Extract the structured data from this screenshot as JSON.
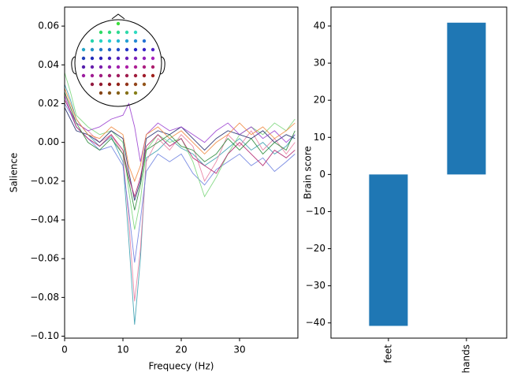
{
  "chart_data": [
    {
      "type": "line",
      "xlabel": "Frequecy (Hz)",
      "ylabel": "Salience",
      "x": [
        0,
        1,
        2,
        4,
        6,
        8,
        10,
        11,
        12,
        13,
        14,
        16,
        18,
        20,
        22,
        24,
        26,
        28,
        30,
        32,
        34,
        36,
        38,
        39.5
      ],
      "series": [
        {
          "color": "#3a9fb0",
          "values": [
            0.03,
            0.022,
            0.012,
            0.004,
            -0.002,
            0.003,
            -0.01,
            -0.05,
            -0.094,
            -0.06,
            -0.008,
            -0.004,
            0.002,
            -0.003,
            -0.006,
            -0.012,
            -0.008,
            -0.003,
            0.002,
            -0.004,
            0.0,
            -0.006,
            -0.002,
            0.004
          ]
        },
        {
          "color": "#e87ca0",
          "values": [
            0.025,
            0.018,
            0.01,
            0.006,
            0.0,
            0.004,
            -0.006,
            -0.04,
            -0.082,
            -0.055,
            -0.01,
            0.002,
            -0.004,
            0.004,
            -0.002,
            -0.02,
            -0.01,
            0.004,
            -0.002,
            0.006,
            -0.004,
            0.002,
            -0.006,
            0.0
          ]
        },
        {
          "color": "#6b7fe0",
          "values": [
            0.02,
            0.015,
            0.008,
            0.002,
            -0.004,
            -0.002,
            -0.012,
            -0.035,
            -0.062,
            -0.04,
            -0.015,
            -0.006,
            -0.01,
            -0.006,
            -0.016,
            -0.022,
            -0.014,
            -0.01,
            -0.006,
            -0.012,
            -0.008,
            -0.015,
            -0.01,
            -0.006
          ]
        },
        {
          "color": "#7ad67a",
          "values": [
            0.036,
            0.026,
            0.014,
            0.008,
            0.004,
            0.006,
            0.0,
            -0.025,
            -0.045,
            -0.03,
            -0.004,
            0.004,
            0.0,
            0.002,
            -0.01,
            -0.028,
            -0.018,
            -0.006,
            0.004,
            0.008,
            0.004,
            0.01,
            0.006,
            0.012
          ]
        },
        {
          "color": "#1f2a6b",
          "values": [
            0.018,
            0.012,
            0.006,
            0.004,
            0.0,
            0.006,
            0.002,
            -0.015,
            -0.03,
            -0.02,
            0.002,
            0.006,
            0.004,
            0.008,
            0.002,
            -0.004,
            0.002,
            0.006,
            0.004,
            0.002,
            0.006,
            0.0,
            0.004,
            0.002
          ]
        },
        {
          "color": "#9a3fd0",
          "values": [
            0.024,
            0.016,
            0.01,
            0.006,
            0.008,
            0.012,
            0.014,
            0.02,
            0.008,
            -0.01,
            0.004,
            0.01,
            0.006,
            0.008,
            0.004,
            0.0,
            0.006,
            0.01,
            0.004,
            0.008,
            0.002,
            0.006,
            0.0,
            0.004
          ]
        },
        {
          "color": "#b0206a",
          "values": [
            0.022,
            0.016,
            0.008,
            0.002,
            -0.002,
            0.004,
            -0.004,
            -0.018,
            -0.028,
            -0.018,
            -0.002,
            0.004,
            -0.002,
            0.002,
            -0.008,
            -0.012,
            -0.016,
            -0.006,
            0.0,
            -0.006,
            -0.012,
            -0.004,
            -0.008,
            -0.004
          ]
        },
        {
          "color": "#f08a40",
          "values": [
            0.028,
            0.02,
            0.012,
            0.004,
            0.002,
            0.008,
            0.004,
            -0.012,
            -0.02,
            -0.012,
            0.004,
            0.008,
            0.002,
            0.006,
            0.0,
            -0.006,
            0.0,
            0.004,
            0.01,
            0.004,
            0.008,
            0.002,
            0.006,
            0.01
          ]
        },
        {
          "color": "#2a8a3a",
          "values": [
            0.026,
            0.018,
            0.01,
            0.0,
            -0.004,
            0.002,
            -0.006,
            -0.02,
            -0.035,
            -0.022,
            -0.004,
            0.0,
            0.004,
            -0.002,
            -0.004,
            -0.01,
            -0.006,
            0.002,
            -0.004,
            0.002,
            -0.006,
            0.0,
            -0.004,
            0.006
          ]
        }
      ],
      "xlim": [
        0,
        40
      ],
      "ylim": [
        -0.101,
        0.0698
      ],
      "xticks": [
        0,
        10,
        20,
        30
      ],
      "yticks": [
        {
          "value": -0.1,
          "label": "−0.10"
        },
        {
          "value": -0.08,
          "label": "−0.08"
        },
        {
          "value": -0.06,
          "label": "−0.06"
        },
        {
          "value": -0.04,
          "label": "−0.04"
        },
        {
          "value": -0.02,
          "label": "−0.02"
        },
        {
          "value": 0,
          "label": "0.00"
        },
        {
          "value": 0.02,
          "label": "0.02"
        },
        {
          "value": 0.04,
          "label": "0.04"
        },
        {
          "value": 0.06,
          "label": "0.06"
        }
      ]
    },
    {
      "type": "bar",
      "ylabel": "Brain score",
      "categories": [
        "feet",
        "hands"
      ],
      "values": [
        -40.8,
        40.9
      ],
      "color": "#1f77b4",
      "ylim": [
        -44.1,
        45.1
      ],
      "yticks": [
        {
          "value": -40,
          "label": "−40"
        },
        {
          "value": -30,
          "label": "−30"
        },
        {
          "value": -20,
          "label": "−20"
        },
        {
          "value": -10,
          "label": "−10"
        },
        0,
        10,
        20,
        30,
        40
      ]
    }
  ]
}
